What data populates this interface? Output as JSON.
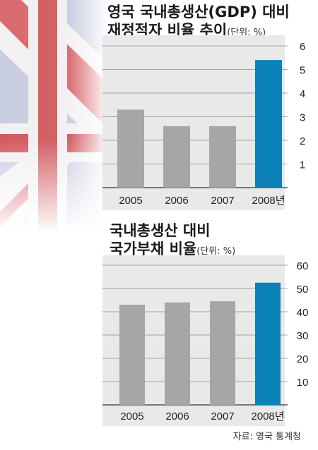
{
  "charts": [
    {
      "title_line1": "영국 국내총생산(GDP) 대비",
      "title_line2": "재정적자 비율 추이",
      "unit": "(단위: %)"
    },
    {
      "title_line1": "국내총생산 대비",
      "title_line2": "국가부채 비율",
      "unit": "(단위: %)"
    }
  ],
  "source": "자료: 영국 통계청",
  "colors": {
    "bar": "#a6a6a6",
    "highlight": "#0c80b8",
    "panel": "#e9e9e9"
  },
  "chart_data": [
    {
      "type": "bar",
      "title": "영국 국내총생산(GDP) 대비 재정적자 비율 추이",
      "categories": [
        "2005",
        "2006",
        "2007",
        "2008년"
      ],
      "values": [
        3.3,
        2.6,
        2.6,
        5.4
      ],
      "ylim": [
        0,
        6
      ],
      "yticks": [
        1,
        2,
        3,
        4,
        5,
        6
      ],
      "grid": true,
      "highlight_index": 3
    },
    {
      "type": "bar",
      "title": "국내총생산 대비 국가부채 비율",
      "categories": [
        "2005",
        "2006",
        "2007",
        "2008년"
      ],
      "values": [
        43,
        44,
        44.5,
        52.5
      ],
      "ylim": [
        0,
        60
      ],
      "yticks": [
        10,
        20,
        30,
        40,
        50,
        60
      ],
      "grid": true,
      "highlight_index": 3
    }
  ]
}
